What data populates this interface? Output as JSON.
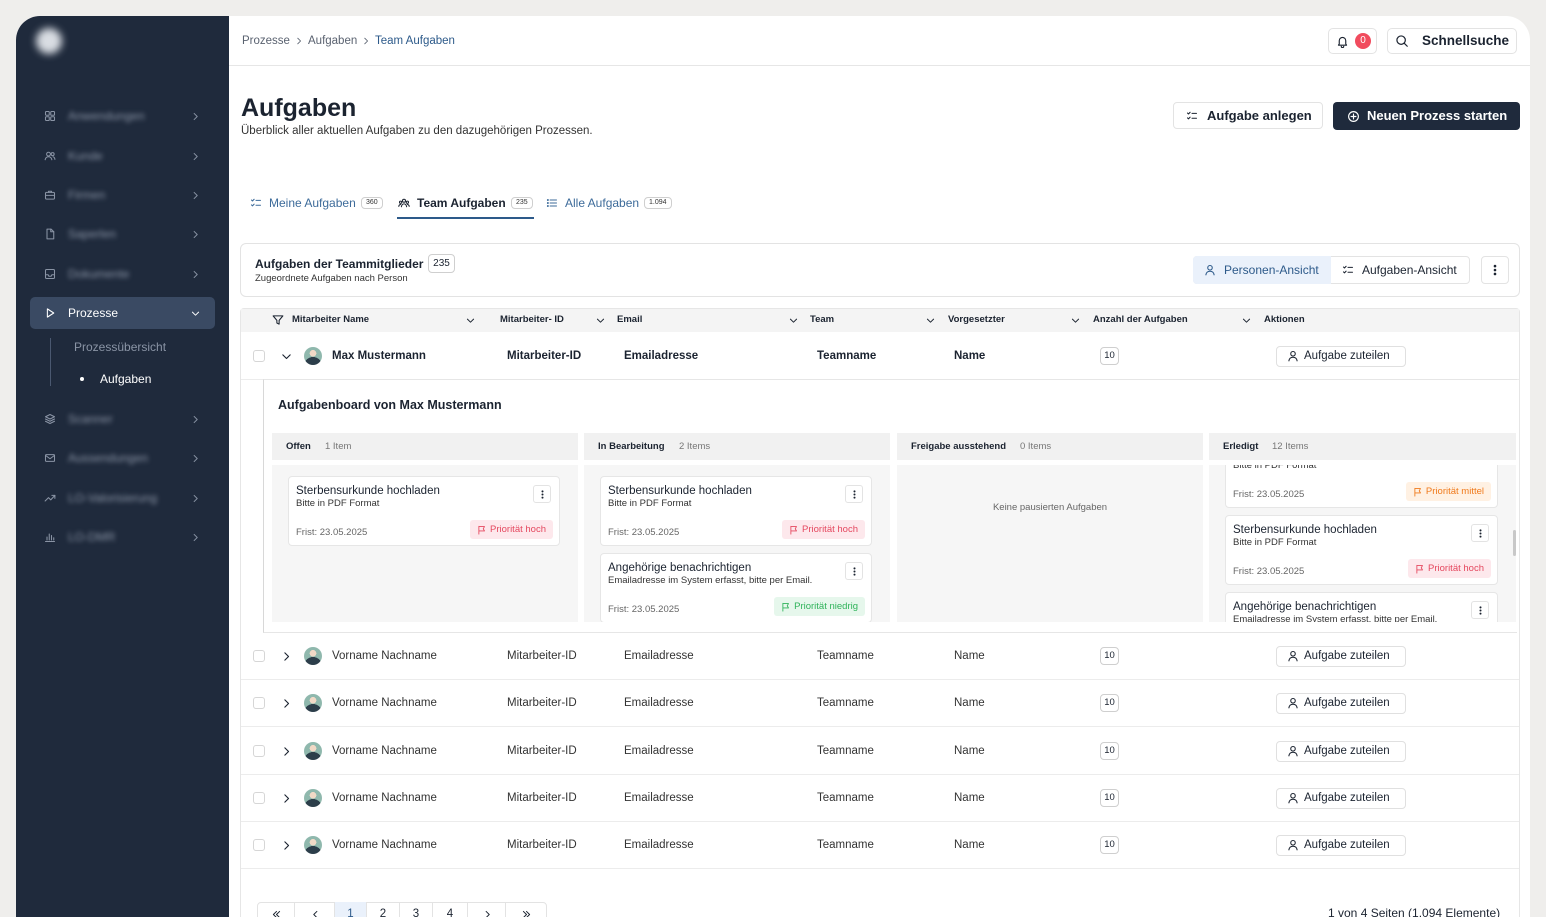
{
  "sidebar": {
    "items": [
      "Anwendungen",
      "Kunde",
      "Firmen",
      "Saperlen",
      "Dokumente",
      "Prozesse",
      "Scanner",
      "Aussendungen",
      "LO-Valorisierung",
      "LO-DMR"
    ],
    "active": 5,
    "subitems": [
      "Prozessübersicht",
      "Aufgaben"
    ],
    "activeSub": 1
  },
  "breadcrumb": [
    "Prozesse",
    "Aufgaben",
    "Team Aufgaben"
  ],
  "notifications": 0,
  "search": "Schnellsuche",
  "header": {
    "title": "Aufgaben",
    "subtitle": "Überblick aller aktuellen Aufgaben zu den dazugehörigen Prozessen.",
    "buttons": [
      "Aufgabe anlegen",
      "Neuen Prozess starten"
    ]
  },
  "tabs": [
    {
      "label": "Meine Aufgaben",
      "count": 360
    },
    {
      "label": "Team Aufgaben",
      "count": 235
    },
    {
      "label": "Alle Aufgaben",
      "count": "1.094"
    }
  ],
  "activeTab": 1,
  "panel": {
    "title": "Aufgaben der Teammitglieder",
    "count": 235,
    "subtitle": "Zugeordnete Aufgaben nach Person",
    "views": [
      "Personen-Ansicht",
      "Aufgaben-Ansicht"
    ]
  },
  "table": {
    "columns": [
      "Mitarbeiter Name",
      "Mitarbeiter- ID",
      "Email",
      "Team",
      "Vorgesetzter",
      "Anzahl der Aufgaben",
      "Aktionen"
    ],
    "rows": [
      {
        "name": "Max Mustermann",
        "id": "Mitarbeiter-ID",
        "email": "Emailadresse",
        "team": "Teamname",
        "manager": "Name",
        "count": 10,
        "action": "Aufgabe zuteilen",
        "expanded": true
      },
      {
        "name": "Vorname Nachname",
        "id": "Mitarbeiter-ID",
        "email": "Emailadresse",
        "team": "Teamname",
        "manager": "Name",
        "count": 10,
        "action": "Aufgabe zuteilen"
      },
      {
        "name": "Vorname Nachname",
        "id": "Mitarbeiter-ID",
        "email": "Emailadresse",
        "team": "Teamname",
        "manager": "Name",
        "count": 10,
        "action": "Aufgabe zuteilen"
      },
      {
        "name": "Vorname Nachname",
        "id": "Mitarbeiter-ID",
        "email": "Emailadresse",
        "team": "Teamname",
        "manager": "Name",
        "count": 10,
        "action": "Aufgabe zuteilen"
      },
      {
        "name": "Vorname Nachname",
        "id": "Mitarbeiter-ID",
        "email": "Emailadresse",
        "team": "Teamname",
        "manager": "Name",
        "count": 10,
        "action": "Aufgabe zuteilen"
      },
      {
        "name": "Vorname Nachname",
        "id": "Mitarbeiter-ID",
        "email": "Emailadresse",
        "team": "Teamname",
        "manager": "Name",
        "count": 10,
        "action": "Aufgabe zuteilen"
      }
    ]
  },
  "board": {
    "title": "Aufgabenboard von Max Mustermann",
    "columns": [
      {
        "title": "Offen",
        "count": "1 Item",
        "cards": [
          {
            "title": "Sterbensurkunde hochladen",
            "desc": "Bitte in PDF Format",
            "due": "Frist: 23.05.2025",
            "priority": "Priorität hoch",
            "color": "#e5485f",
            "bg": "#fde8ec"
          }
        ]
      },
      {
        "title": "In Bearbeitung",
        "count": "2 Items",
        "cards": [
          {
            "title": "Sterbensurkunde hochladen",
            "desc": "Bitte in PDF Format",
            "due": "Frist: 23.05.2025",
            "priority": "Priorität hoch",
            "color": "#e5485f",
            "bg": "#fde8ec"
          },
          {
            "title": "Angehörige benachrichtigen",
            "desc": "Emailadresse im System erfasst, bitte per Email.",
            "due": "Frist: 23.05.2025",
            "priority": "Priorität niedrig",
            "color": "#2fb35a",
            "bg": "#e6f7ec"
          }
        ]
      },
      {
        "title": "Freigabe ausstehend",
        "count": "0 Items",
        "empty": "Keine pausierten Aufgaben"
      },
      {
        "title": "Erledigt",
        "count": "12 Items",
        "cards": [
          {
            "desc": "Bitte in PDF Format",
            "due": "Frist: 23.05.2025",
            "priority": "Priorität mittel",
            "color": "#f07a1c",
            "bg": "#fff1e3"
          },
          {
            "title": "Sterbensurkunde hochladen",
            "desc": "Bitte in PDF Format",
            "due": "Frist: 23.05.2025",
            "priority": "Priorität hoch",
            "color": "#e5485f",
            "bg": "#fde8ec"
          },
          {
            "title": "Angehörige benachrichtigen",
            "desc": "Emailadresse im System erfasst, bitte per Email."
          }
        ]
      }
    ]
  },
  "pagination": {
    "pages": [
      1,
      2,
      3,
      4
    ],
    "active": 0,
    "info": "1 von 4 Seiten (1.094 Elemente)"
  }
}
